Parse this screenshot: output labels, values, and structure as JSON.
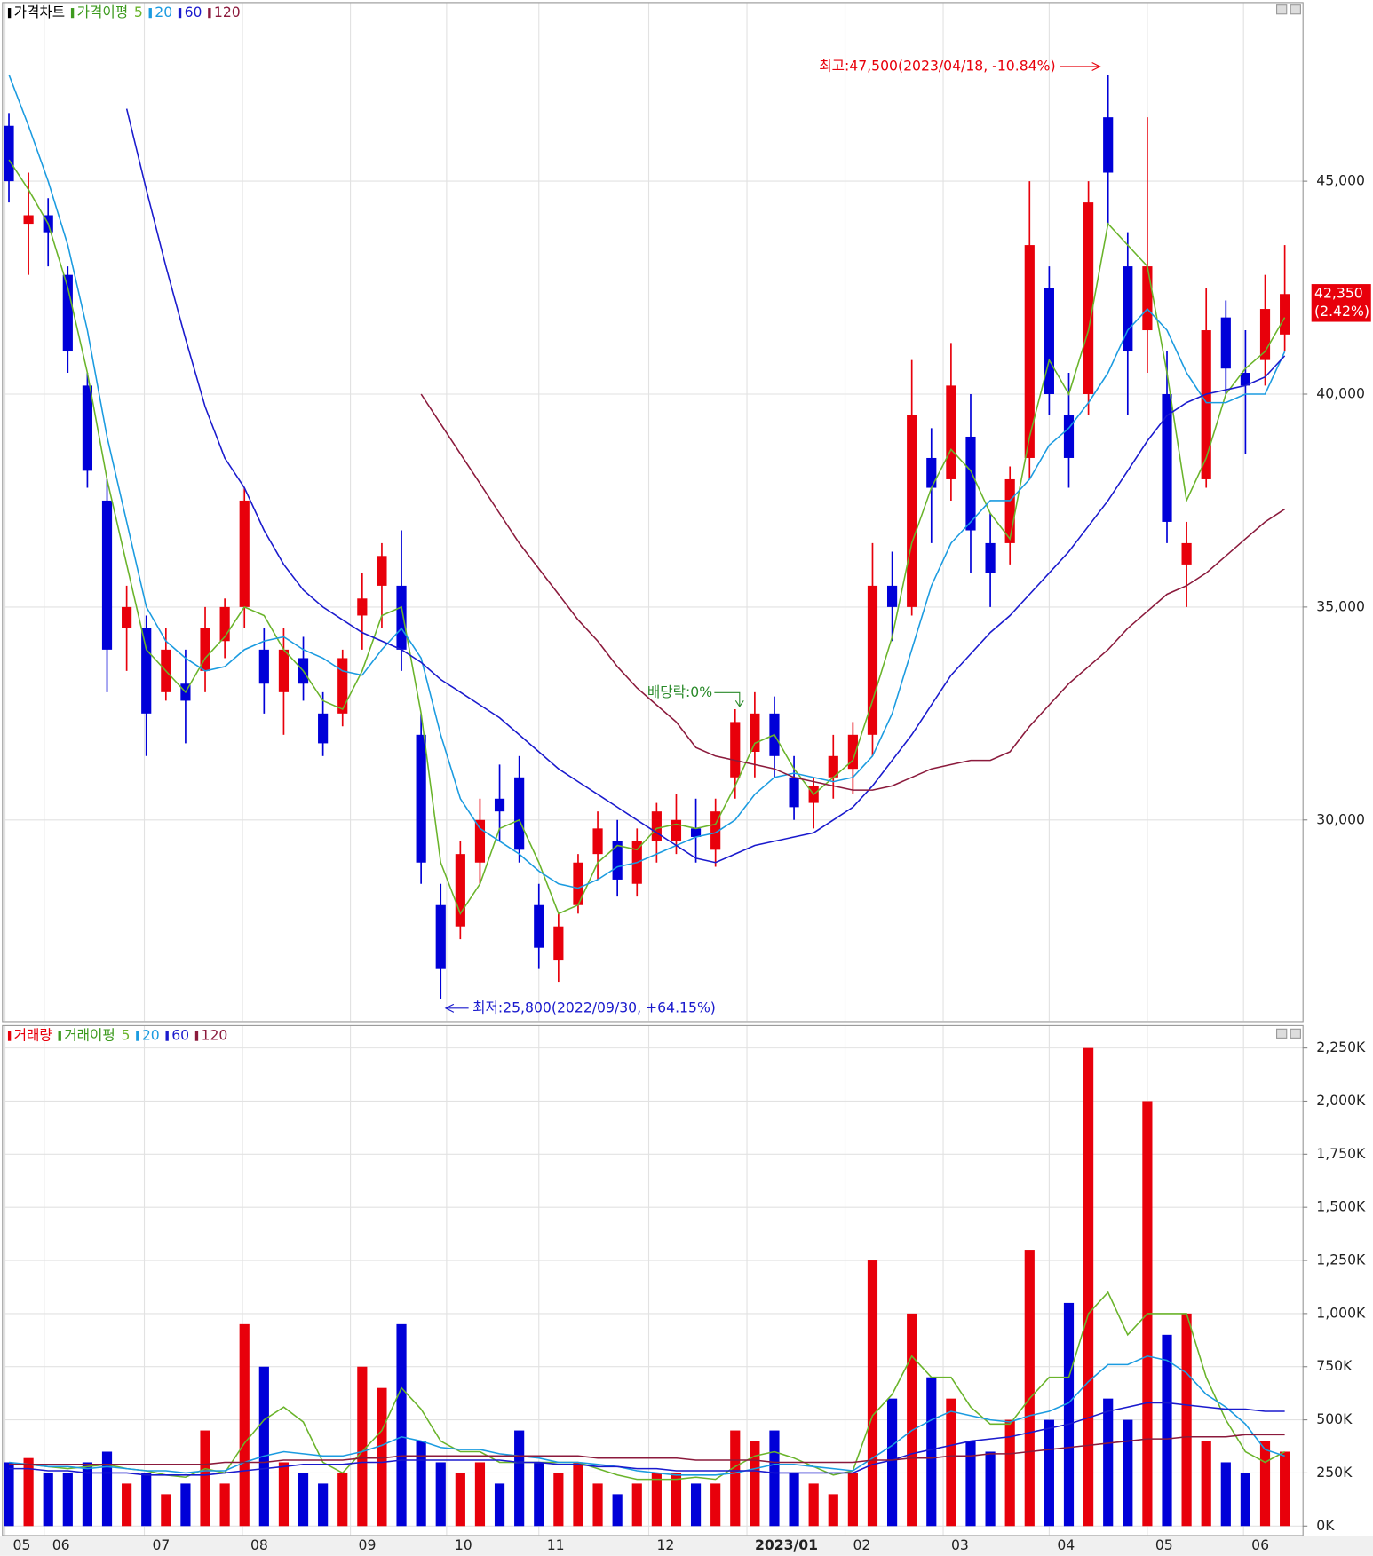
{
  "chart_data": [
    {
      "type": "candlestick",
      "title": "가격차트",
      "title_color": "#000000",
      "ma_title": "가격이평",
      "ma_title_color": "#3c9a1e",
      "up_color": "#e8000b",
      "down_color": "#0000d8",
      "xlim": [
        -0.2,
        65.4
      ],
      "ylim": [
        25300,
        48600
      ],
      "yticks": [
        {
          "value": 30000,
          "label": "30,000"
        },
        {
          "value": 35000,
          "label": "35,000"
        },
        {
          "value": 40000,
          "label": "40,000"
        },
        {
          "value": 45000,
          "label": "45,000"
        }
      ],
      "grid": true,
      "open": [
        46300,
        44000,
        44200,
        42800,
        40200,
        37500,
        34500,
        34500,
        33000,
        33200,
        33500,
        34200,
        35000,
        34000,
        33000,
        33800,
        32500,
        32500,
        34800,
        35500,
        35500,
        32000,
        28000,
        27500,
        29000,
        30500,
        31000,
        28000,
        26700,
        28000,
        29200,
        29500,
        28500,
        29500,
        29500,
        29800,
        29300,
        31000,
        31600,
        32500,
        31000,
        30400,
        31000,
        31200,
        32000,
        35500,
        35000,
        38500,
        38000,
        39000,
        36500,
        36500,
        38500,
        42500,
        39500,
        40000,
        46500,
        43000,
        41500,
        40000,
        36000,
        38000,
        41800,
        40500,
        40800,
        41400
      ],
      "high": [
        46600,
        45200,
        44600,
        43000,
        40500,
        38000,
        35500,
        34800,
        34500,
        34000,
        35000,
        35200,
        37800,
        34500,
        34500,
        34300,
        33000,
        34000,
        35800,
        36500,
        36800,
        32500,
        28500,
        29500,
        30500,
        31300,
        31500,
        28500,
        27800,
        29200,
        30200,
        30000,
        29800,
        30400,
        30600,
        30500,
        30500,
        32600,
        33000,
        32900,
        31500,
        31000,
        32000,
        32300,
        36500,
        36300,
        40800,
        39200,
        41200,
        40000,
        37200,
        38300,
        45000,
        43000,
        40500,
        45000,
        47500,
        43800,
        46500,
        41000,
        37000,
        42500,
        42200,
        41500,
        42800,
        43500
      ],
      "low": [
        44500,
        42800,
        43000,
        40500,
        37800,
        33000,
        33500,
        31500,
        32800,
        31800,
        33000,
        33800,
        34500,
        32500,
        32000,
        32800,
        31500,
        32200,
        34000,
        34500,
        33500,
        28500,
        25800,
        27200,
        28500,
        29500,
        29000,
        26500,
        26200,
        27800,
        28600,
        28200,
        28200,
        29000,
        29200,
        29000,
        28900,
        30500,
        31000,
        31000,
        30000,
        29800,
        30500,
        30600,
        31500,
        34200,
        34800,
        36500,
        37500,
        35800,
        35000,
        36000,
        38000,
        39500,
        37800,
        39500,
        44000,
        39500,
        40500,
        36500,
        35000,
        37800,
        40000,
        38600,
        40200,
        41000
      ],
      "close": [
        45000,
        44200,
        43800,
        41000,
        38200,
        34000,
        35000,
        32500,
        34000,
        32800,
        34500,
        35000,
        37500,
        33200,
        34000,
        33200,
        31800,
        33800,
        35200,
        36200,
        34000,
        29000,
        26500,
        29200,
        30000,
        30200,
        29300,
        27000,
        27500,
        29000,
        29800,
        28600,
        29500,
        30200,
        30000,
        29600,
        30200,
        32300,
        32500,
        31500,
        30300,
        30800,
        31500,
        32000,
        35500,
        35000,
        39500,
        37800,
        40200,
        36800,
        35800,
        38000,
        43500,
        40000,
        38500,
        44500,
        45200,
        41000,
        43000,
        37000,
        36500,
        41500,
        40600,
        40200,
        42000,
        42350
      ],
      "series": [
        {
          "name": "5",
          "color": "#6ab42b",
          "values": [
            45500,
            44800,
            44000,
            42500,
            40500,
            38000,
            36000,
            34000,
            33500,
            33000,
            33800,
            34300,
            35000,
            34800,
            34000,
            33500,
            32800,
            32600,
            33500,
            34800,
            35000,
            32500,
            29000,
            27800,
            28500,
            29800,
            30000,
            29000,
            27800,
            28000,
            29000,
            29400,
            29300,
            29800,
            29900,
            29800,
            29900,
            30800,
            31800,
            32000,
            31200,
            30600,
            31000,
            31400,
            32800,
            34300,
            36500,
            37800,
            38700,
            38200,
            37200,
            36600,
            39000,
            40800,
            40000,
            41500,
            44000,
            43500,
            43000,
            40500,
            37500,
            38500,
            40000,
            40600,
            41000,
            41800
          ]
        },
        {
          "name": "20",
          "color": "#1b9be0",
          "values": [
            47500,
            46300,
            45000,
            43500,
            41500,
            39000,
            37000,
            35000,
            34200,
            33800,
            33500,
            33600,
            34000,
            34200,
            34300,
            34000,
            33800,
            33500,
            33400,
            34000,
            34500,
            33800,
            32000,
            30500,
            29800,
            29500,
            29200,
            28800,
            28500,
            28400,
            28600,
            28900,
            29000,
            29200,
            29400,
            29600,
            29700,
            30000,
            30600,
            31000,
            31100,
            31000,
            30900,
            31000,
            31500,
            32500,
            34000,
            35500,
            36500,
            37000,
            37500,
            37500,
            38000,
            38800,
            39200,
            39800,
            40500,
            41500,
            42000,
            41500,
            40500,
            39800,
            39800,
            40000,
            40000,
            41000
          ]
        },
        {
          "name": "60",
          "color": "#1a1acd",
          "values": [
            null,
            null,
            null,
            null,
            null,
            null,
            46700,
            44800,
            43000,
            41300,
            39700,
            38500,
            37800,
            36800,
            36000,
            35400,
            35000,
            34700,
            34400,
            34200,
            34000,
            33700,
            33300,
            33000,
            32700,
            32400,
            32000,
            31600,
            31200,
            30900,
            30600,
            30300,
            30000,
            29700,
            29400,
            29100,
            29000,
            29200,
            29400,
            29500,
            29600,
            29700,
            30000,
            30300,
            30800,
            31400,
            32000,
            32700,
            33400,
            33900,
            34400,
            34800,
            35300,
            35800,
            36300,
            36900,
            37500,
            38200,
            38900,
            39500,
            39800,
            40000,
            40100,
            40200,
            40400,
            40900
          ]
        },
        {
          "name": "120",
          "color": "#8b1a3c",
          "values": [
            null,
            null,
            null,
            null,
            null,
            null,
            null,
            null,
            null,
            null,
            null,
            null,
            null,
            null,
            null,
            null,
            null,
            null,
            null,
            null,
            null,
            40000,
            39300,
            38600,
            37900,
            37200,
            36500,
            35900,
            35300,
            34700,
            34200,
            33600,
            33100,
            32700,
            32300,
            31700,
            31500,
            31400,
            31300,
            31200,
            31000,
            30900,
            30800,
            30700,
            30700,
            30800,
            31000,
            31200,
            31300,
            31400,
            31400,
            31600,
            32200,
            32700,
            33200,
            33600,
            34000,
            34500,
            34900,
            35300,
            35500,
            35800,
            36200,
            36600,
            37000,
            37300
          ]
        }
      ],
      "annotations": [
        {
          "text": "최고:47,500(2023/04/18, -10.84%)",
          "color": "#e8000b"
        },
        {
          "text": "최저:25,800(2022/09/30, +64.15%)",
          "color": "#1a1acd"
        },
        {
          "text": "배당락:0%",
          "color": "#2a8a2a"
        }
      ],
      "price_label": {
        "value": 42350,
        "label": "42,350"
      },
      "change_label": {
        "value": 2.42,
        "label": "(2.42%)"
      }
    },
    {
      "type": "bar",
      "title": "거래량",
      "title_color": "#e8000b",
      "ma_title": "거래이평",
      "ma_title_color": "#3c9a1e",
      "xlim": [
        -0.2,
        65.4
      ],
      "ylim": [
        -33000,
        2325000
      ],
      "yticks": [
        {
          "value": 0,
          "label": "0K"
        },
        {
          "value": 250000,
          "label": "250K"
        },
        {
          "value": 500000,
          "label": "500K"
        },
        {
          "value": 750000,
          "label": "750K"
        },
        {
          "value": 1000000,
          "label": "1,000K"
        },
        {
          "value": 1250000,
          "label": "1,250K"
        },
        {
          "value": 1500000,
          "label": "1,500K"
        },
        {
          "value": 1750000,
          "label": "1,750K"
        },
        {
          "value": 2000000,
          "label": "2,000K"
        },
        {
          "value": 2250000,
          "label": "2,250K"
        }
      ],
      "grid": true,
      "values": [
        300000,
        320000,
        250000,
        250000,
        300000,
        350000,
        200000,
        250000,
        150000,
        200000,
        450000,
        200000,
        950000,
        750000,
        300000,
        250000,
        200000,
        250000,
        750000,
        650000,
        950000,
        400000,
        300000,
        250000,
        300000,
        200000,
        450000,
        300000,
        250000,
        300000,
        200000,
        150000,
        200000,
        250000,
        250000,
        200000,
        200000,
        450000,
        400000,
        450000,
        250000,
        200000,
        150000,
        250000,
        1250000,
        600000,
        1000000,
        700000,
        600000,
        400000,
        350000,
        500000,
        1300000,
        500000,
        1050000,
        2250000,
        600000,
        500000,
        2000000,
        900000,
        1000000,
        400000,
        300000,
        250000,
        400000,
        350000
      ],
      "series": [
        {
          "name": "5",
          "color": "#6ab42b",
          "values": [
            290000,
            290000,
            280000,
            270000,
            280000,
            290000,
            270000,
            260000,
            240000,
            230000,
            270000,
            250000,
            390000,
            500000,
            560000,
            490000,
            300000,
            250000,
            350000,
            450000,
            650000,
            550000,
            400000,
            350000,
            350000,
            300000,
            300000,
            300000,
            300000,
            300000,
            270000,
            240000,
            220000,
            220000,
            220000,
            230000,
            220000,
            280000,
            330000,
            350000,
            320000,
            280000,
            240000,
            260000,
            520000,
            620000,
            800000,
            700000,
            700000,
            560000,
            480000,
            480000,
            600000,
            700000,
            700000,
            1000000,
            1100000,
            900000,
            1000000,
            1000000,
            1000000,
            700000,
            500000,
            350000,
            300000,
            350000
          ]
        },
        {
          "name": "20",
          "color": "#1b9be0",
          "values": [
            300000,
            290000,
            280000,
            280000,
            270000,
            280000,
            270000,
            260000,
            260000,
            250000,
            260000,
            260000,
            300000,
            330000,
            350000,
            340000,
            330000,
            330000,
            350000,
            380000,
            420000,
            400000,
            370000,
            360000,
            360000,
            340000,
            330000,
            320000,
            300000,
            300000,
            290000,
            280000,
            260000,
            250000,
            240000,
            240000,
            240000,
            250000,
            270000,
            290000,
            290000,
            280000,
            270000,
            260000,
            320000,
            380000,
            450000,
            500000,
            540000,
            520000,
            500000,
            490000,
            520000,
            540000,
            580000,
            680000,
            760000,
            760000,
            800000,
            780000,
            720000,
            620000,
            560000,
            480000,
            360000,
            330000
          ]
        },
        {
          "name": "60",
          "color": "#1a1acd",
          "values": [
            270000,
            270000,
            260000,
            260000,
            250000,
            250000,
            250000,
            240000,
            240000,
            240000,
            240000,
            250000,
            260000,
            270000,
            280000,
            290000,
            290000,
            290000,
            300000,
            300000,
            310000,
            310000,
            310000,
            310000,
            310000,
            310000,
            300000,
            300000,
            290000,
            290000,
            280000,
            280000,
            270000,
            270000,
            260000,
            260000,
            260000,
            260000,
            260000,
            250000,
            250000,
            250000,
            250000,
            250000,
            290000,
            310000,
            340000,
            360000,
            380000,
            400000,
            410000,
            420000,
            440000,
            460000,
            480000,
            510000,
            540000,
            560000,
            580000,
            580000,
            570000,
            560000,
            550000,
            550000,
            540000,
            540000
          ]
        },
        {
          "name": "120",
          "color": "#8b1a3c",
          "values": [
            290000,
            290000,
            290000,
            290000,
            290000,
            290000,
            290000,
            290000,
            290000,
            290000,
            290000,
            300000,
            300000,
            300000,
            310000,
            310000,
            310000,
            310000,
            320000,
            320000,
            330000,
            330000,
            330000,
            330000,
            330000,
            330000,
            330000,
            330000,
            330000,
            330000,
            320000,
            320000,
            320000,
            320000,
            320000,
            310000,
            310000,
            310000,
            310000,
            300000,
            300000,
            300000,
            300000,
            300000,
            310000,
            310000,
            320000,
            320000,
            330000,
            330000,
            340000,
            340000,
            350000,
            360000,
            370000,
            380000,
            390000,
            400000,
            410000,
            410000,
            420000,
            420000,
            420000,
            430000,
            430000,
            430000
          ]
        }
      ],
      "xticks": [
        {
          "value": -0.2,
          "label": "05"
        },
        {
          "value": 1.8,
          "label": "06"
        },
        {
          "value": 6.9,
          "label": "07"
        },
        {
          "value": 11.9,
          "label": "08"
        },
        {
          "value": 17.4,
          "label": "09"
        },
        {
          "value": 22.3,
          "label": "10"
        },
        {
          "value": 27.0,
          "label": "11"
        },
        {
          "value": 32.6,
          "label": "12"
        },
        {
          "value": 37.6,
          "label": "2023/01"
        },
        {
          "value": 42.6,
          "label": "02"
        },
        {
          "value": 47.6,
          "label": "03"
        },
        {
          "value": 53.0,
          "label": "04"
        },
        {
          "value": 58.0,
          "label": "05"
        },
        {
          "value": 62.9,
          "label": "06"
        }
      ]
    }
  ]
}
